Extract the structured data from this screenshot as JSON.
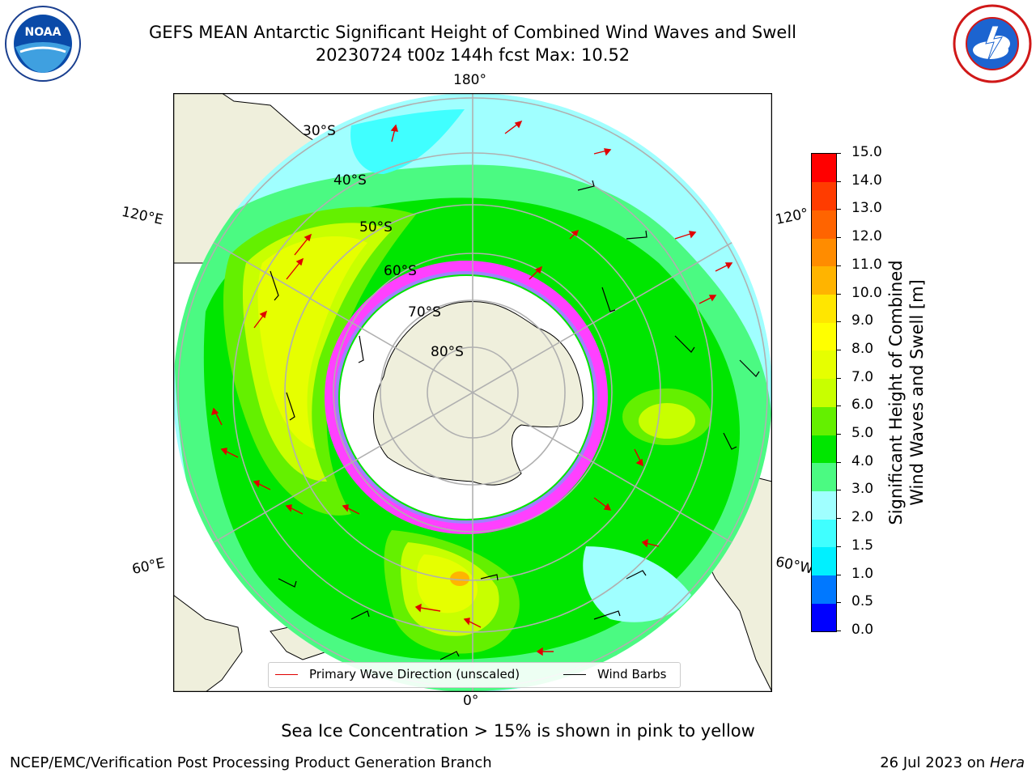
{
  "header": {
    "title_line1": "GEFS MEAN Antarctic Significant Height of Combined Wind Waves and Swell",
    "title_line2": "20230724 t00z 144h fcst   Max: 10.52"
  },
  "logos": {
    "left": {
      "icon": "noaa-logo-icon",
      "text": "NOAA"
    },
    "right": {
      "icon": "national-weather-service-logo-icon"
    }
  },
  "map": {
    "projection": "south-polar-stereographic",
    "longitude_labels": {
      "top": "180°",
      "bottom": "0°",
      "left_upper": "120°E",
      "left_lower": "60°E",
      "right_upper": "120°",
      "right_lower": "60°W"
    },
    "latitude_labels": [
      "30°S",
      "40°S",
      "50°S",
      "60°S",
      "70°S",
      "80°S"
    ],
    "legend": {
      "primary_wave": "Primary Wave Direction (unscaled)",
      "wind_barbs": "Wind Barbs"
    }
  },
  "colorbar": {
    "label_line1": "Significant Height of Combined",
    "label_line2": "Wind Waves and Swell [m]",
    "ticks": [
      "0.0",
      "0.5",
      "1.0",
      "1.5",
      "2.0",
      "3.0",
      "4.0",
      "5.0",
      "6.0",
      "7.0",
      "8.0",
      "9.0",
      "10.0",
      "11.0",
      "12.0",
      "13.0",
      "14.0",
      "15.0"
    ],
    "colors": [
      "#0000ff",
      "#0078ff",
      "#00f0ff",
      "#40ffff",
      "#a0ffff",
      "#4bfa82",
      "#00e600",
      "#64f000",
      "#c8ff00",
      "#e6ff00",
      "#ffff00",
      "#ffe600",
      "#ffb400",
      "#ff8c00",
      "#ff6400",
      "#ff3c00",
      "#ff0000"
    ]
  },
  "footer": {
    "note": "Sea Ice Concentration > 15% is shown in pink to yellow",
    "left": "NCEP/EMC/Verification Post Processing Product Generation Branch",
    "right_prefix": "26 Jul 2023 on ",
    "right_host": "Hera"
  }
}
